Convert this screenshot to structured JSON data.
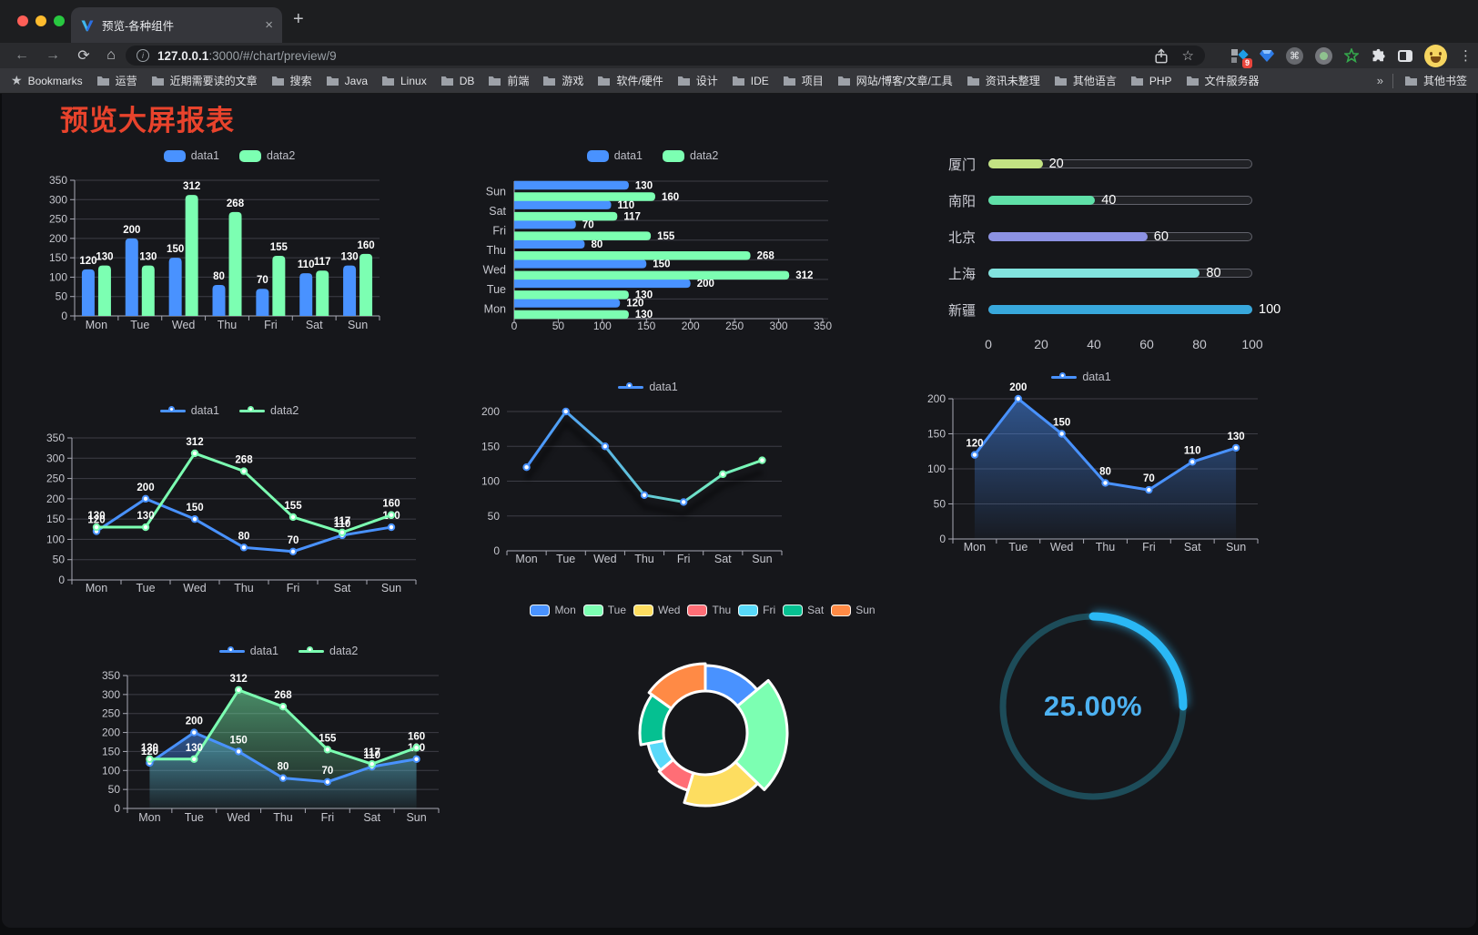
{
  "browser": {
    "tab_title": "预览-各种组件",
    "url": {
      "host": "127.0.0.1",
      "rest": ":3000/#/chart/preview/9"
    },
    "badge": "9",
    "icons": {
      "back": "←",
      "forward": "→",
      "reload": "⟳",
      "home": "⌂",
      "info": "i",
      "star": "☆",
      "bookmark_star": "★",
      "close": "×",
      "new_tab": "+",
      "more": "⋮",
      "cmd": "⌘"
    },
    "bookmarks_bar": {
      "star_label": "Bookmarks",
      "folders": [
        "运营",
        "近期需要读的文章",
        "搜索",
        "Java",
        "Linux",
        "DB",
        "前端",
        "游戏",
        "软件/硬件",
        "设计",
        "IDE",
        "项目",
        "网站/博客/文章/工具",
        "资讯未整理",
        "其他语言",
        "PHP",
        "文件服务器"
      ],
      "overflow": "»",
      "other_bookmarks": "其他书签"
    }
  },
  "page": {
    "title": "预览大屏报表",
    "title_color": "#e8432c"
  },
  "palette": {
    "data1": "#4992ff",
    "data2": "#7cffb2"
  },
  "chart_data": [
    {
      "id": "bar-grouped",
      "type": "bar",
      "legend": [
        "data1",
        "data2"
      ],
      "categories": [
        "Mon",
        "Tue",
        "Wed",
        "Thu",
        "Fri",
        "Sat",
        "Sun"
      ],
      "series": [
        {
          "name": "data1",
          "color": "#4992ff",
          "values": [
            120,
            200,
            150,
            80,
            70,
            110,
            130
          ]
        },
        {
          "name": "data2",
          "color": "#7cffb2",
          "values": [
            130,
            130,
            312,
            268,
            155,
            117,
            160
          ]
        }
      ],
      "ylim": [
        0,
        350
      ],
      "yticks": [
        0,
        50,
        100,
        150,
        200,
        250,
        300,
        350
      ],
      "value_labels": true,
      "grid": true,
      "legend_position": "top"
    },
    {
      "id": "bar-horizontal",
      "type": "hbar",
      "legend": [
        "data1",
        "data2"
      ],
      "categories": [
        "Mon",
        "Tue",
        "Wed",
        "Thu",
        "Fri",
        "Sat",
        "Sun"
      ],
      "inverse_y": true,
      "series": [
        {
          "name": "data1",
          "color": "#4992ff",
          "values": [
            120,
            200,
            150,
            80,
            70,
            110,
            130
          ]
        },
        {
          "name": "data2",
          "color": "#7cffb2",
          "values": [
            130,
            130,
            312,
            268,
            155,
            117,
            160
          ]
        }
      ],
      "xlim": [
        0,
        350
      ],
      "xticks": [
        0,
        50,
        100,
        150,
        200,
        250,
        300,
        350
      ],
      "value_labels": true
    },
    {
      "id": "city-progress",
      "type": "progress",
      "max": 100,
      "xticks": [
        0,
        20,
        40,
        60,
        80,
        100
      ],
      "rows": [
        {
          "label": "厦门",
          "value": 20,
          "color": "#c3e383"
        },
        {
          "label": "南阳",
          "value": 40,
          "color": "#5fe0a8"
        },
        {
          "label": "北京",
          "value": 60,
          "color": "#8c92e3"
        },
        {
          "label": "上海",
          "value": 80,
          "color": "#82e3de"
        },
        {
          "label": "新疆",
          "value": 100,
          "color": "#38a8dc"
        }
      ]
    },
    {
      "id": "line-dual",
      "type": "line",
      "legend": [
        "data1",
        "data2"
      ],
      "categories": [
        "Mon",
        "Tue",
        "Wed",
        "Thu",
        "Fri",
        "Sat",
        "Sun"
      ],
      "series": [
        {
          "name": "data1",
          "color": "#4992ff",
          "values": [
            120,
            200,
            150,
            80,
            70,
            110,
            130
          ]
        },
        {
          "name": "data2",
          "color": "#7cffb2",
          "values": [
            130,
            130,
            312,
            268,
            155,
            117,
            160
          ]
        }
      ],
      "ylim": [
        0,
        350
      ],
      "yticks": [
        0,
        50,
        100,
        150,
        200,
        250,
        300,
        350
      ],
      "value_labels": true
    },
    {
      "id": "line-gradient",
      "type": "line",
      "legend": [
        "data1"
      ],
      "categories": [
        "Mon",
        "Tue",
        "Wed",
        "Thu",
        "Fri",
        "Sat",
        "Sun"
      ],
      "series": [
        {
          "name": "data1",
          "values": [
            120,
            200,
            150,
            80,
            70,
            110,
            130
          ]
        }
      ],
      "gradient": [
        "#4992ff",
        "#7cffb2"
      ],
      "ylim": [
        0,
        200
      ],
      "yticks": [
        0,
        50,
        100,
        150,
        200
      ],
      "value_labels": false
    },
    {
      "id": "line-area",
      "type": "line",
      "legend": [
        "data1"
      ],
      "categories": [
        "Mon",
        "Tue",
        "Wed",
        "Thu",
        "Fri",
        "Sat",
        "Sun"
      ],
      "series": [
        {
          "name": "data1",
          "color": "#4992ff",
          "values": [
            120,
            200,
            150,
            80,
            70,
            110,
            130
          ]
        }
      ],
      "area": true,
      "ylim": [
        0,
        200
      ],
      "yticks": [
        0,
        50,
        100,
        150,
        200
      ],
      "value_labels": true
    },
    {
      "id": "line-area-dual",
      "type": "line",
      "legend": [
        "data1",
        "data2"
      ],
      "categories": [
        "Mon",
        "Tue",
        "Wed",
        "Thu",
        "Fri",
        "Sat",
        "Sun"
      ],
      "series": [
        {
          "name": "data1",
          "color": "#4992ff",
          "values": [
            120,
            200,
            150,
            80,
            70,
            110,
            130
          ]
        },
        {
          "name": "data2",
          "color": "#7cffb2",
          "values": [
            130,
            130,
            312,
            268,
            155,
            117,
            160
          ]
        }
      ],
      "area": true,
      "ylim": [
        0,
        350
      ],
      "yticks": [
        0,
        50,
        100,
        150,
        200,
        250,
        300,
        350
      ],
      "value_labels": true
    },
    {
      "id": "rose-pie",
      "type": "rose",
      "legend": [
        "Mon",
        "Tue",
        "Wed",
        "Thu",
        "Fri",
        "Sat",
        "Sun"
      ],
      "values": [
        120,
        200,
        150,
        80,
        70,
        110,
        130
      ],
      "colors": [
        "#4992ff",
        "#7cffb2",
        "#fddd60",
        "#ff6e76",
        "#58d9f9",
        "#05c091",
        "#ff8a45"
      ]
    },
    {
      "id": "gauge",
      "type": "gauge",
      "value_text": "25.00%",
      "percent": 25,
      "track_color": "#1d4c59",
      "bar_color": "#2ab8f5",
      "text_color": "#4db2f2"
    }
  ]
}
